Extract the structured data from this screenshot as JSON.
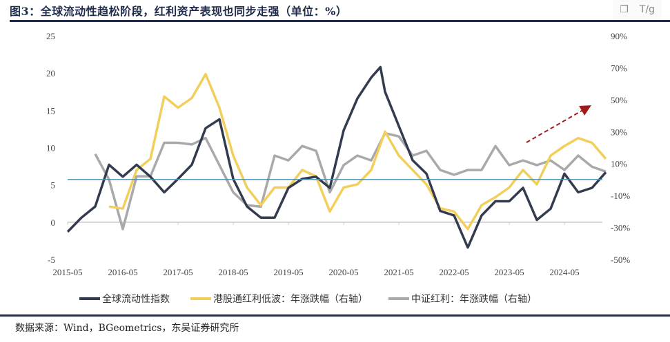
{
  "title": "图3：全球流动性趋松阶段，红利资产表现也同步走强（单位：%）",
  "toolbar": {
    "icons": [
      "copy-icon",
      "translate-icon"
    ],
    "translate_label": "T/g"
  },
  "source": "数据来源：Wind，BGeometrics，东吴证券研究所",
  "chart_data": {
    "type": "line",
    "title": "",
    "xlabel": "",
    "ylabel_left": "",
    "ylabel_right": "",
    "x_ticks": [
      "2015-05",
      "2016-05",
      "2017-05",
      "2018-05",
      "2019-05",
      "2020-05",
      "2021-05",
      "2022-05",
      "2023-05",
      "2024-05"
    ],
    "left_axis": {
      "ylim": [
        -5,
        25
      ],
      "ticks": [
        "25",
        "20",
        "15",
        "10",
        "5",
        "0",
        "-5"
      ]
    },
    "right_axis": {
      "ylim": [
        -50,
        90
      ],
      "ticks": [
        "90%",
        "70%",
        "50%",
        "30%",
        "10%",
        "-10%",
        "-30%",
        "-50%"
      ]
    },
    "grid": false,
    "legend_position": "bottom",
    "reference_line": {
      "axis": "right",
      "value": 0,
      "color": "#4a8fb0"
    },
    "annotation_arrow": {
      "color": "#a01c1c",
      "style": "dashed",
      "direction": "up-right",
      "from": "2023-11",
      "to": "2024-11"
    },
    "series": [
      {
        "name": "全球流动性指数",
        "axis": "left",
        "color": "#333c4e",
        "x": [
          "2015-05",
          "2015-08",
          "2015-11",
          "2016-02",
          "2016-05",
          "2016-08",
          "2016-11",
          "2017-02",
          "2017-05",
          "2017-08",
          "2017-11",
          "2018-02",
          "2018-05",
          "2018-08",
          "2018-11",
          "2019-02",
          "2019-05",
          "2019-08",
          "2019-11",
          "2020-02",
          "2020-05",
          "2020-08",
          "2020-11",
          "2021-01",
          "2021-02",
          "2021-05",
          "2021-08",
          "2021-11",
          "2022-02",
          "2022-05",
          "2022-08",
          "2022-11",
          "2023-02",
          "2023-05",
          "2023-08",
          "2023-11",
          "2024-02",
          "2024-05",
          "2024-08",
          "2024-11",
          "2025-02"
        ],
        "values": [
          -1.3,
          0.6,
          2.1,
          7.7,
          6.1,
          7.7,
          6.1,
          4.0,
          5.8,
          7.7,
          12.6,
          13.8,
          5.8,
          2.1,
          0.6,
          0.6,
          4.6,
          5.8,
          6.1,
          4.6,
          12.3,
          16.6,
          19.4,
          20.8,
          17.5,
          12.9,
          8.3,
          6.5,
          1.5,
          0.9,
          -3.4,
          0.9,
          2.8,
          2.8,
          4.6,
          0.3,
          1.8,
          6.5,
          4.0,
          4.6,
          6.7
        ]
      },
      {
        "name": "港股通红利低波：年涨跌幅（右轴）",
        "axis": "right",
        "color": "#f2cf5b",
        "x": [
          "2016-02",
          "2016-05",
          "2016-08",
          "2016-11",
          "2017-02",
          "2017-05",
          "2017-08",
          "2017-11",
          "2018-02",
          "2018-05",
          "2018-08",
          "2018-11",
          "2019-02",
          "2019-05",
          "2019-08",
          "2019-11",
          "2020-02",
          "2020-05",
          "2020-08",
          "2020-11",
          "2021-02",
          "2021-05",
          "2021-08",
          "2021-11",
          "2022-02",
          "2022-05",
          "2022-08",
          "2022-11",
          "2023-02",
          "2023-05",
          "2023-08",
          "2023-11",
          "2024-02",
          "2024-05",
          "2024-08",
          "2024-11",
          "2025-02"
        ],
        "values": [
          -16.9,
          -18.2,
          6,
          13,
          52,
          45,
          51,
          66,
          45,
          15,
          -5,
          -16,
          -5,
          -5,
          6,
          2,
          -20,
          -5,
          -3,
          6,
          30,
          15,
          6,
          -3,
          -18,
          -20,
          -31,
          -16,
          -11,
          -5,
          6,
          -3,
          15,
          21,
          26,
          23,
          13
        ]
      },
      {
        "name": "中证红利：年涨跌幅（右轴）",
        "axis": "right",
        "color": "#a9a9ab",
        "x": [
          "2015-11",
          "2016-02",
          "2016-05",
          "2016-08",
          "2016-11",
          "2017-02",
          "2017-05",
          "2017-08",
          "2017-11",
          "2018-02",
          "2018-05",
          "2018-08",
          "2018-11",
          "2019-02",
          "2019-05",
          "2019-08",
          "2019-11",
          "2020-02",
          "2020-05",
          "2020-08",
          "2020-11",
          "2021-02",
          "2021-05",
          "2021-08",
          "2021-11",
          "2022-02",
          "2022-05",
          "2022-08",
          "2022-11",
          "2023-02",
          "2023-05",
          "2023-08",
          "2023-11",
          "2024-02",
          "2024-05",
          "2024-08",
          "2024-11",
          "2025-02"
        ],
        "values": [
          16,
          0,
          -31,
          2,
          2,
          23,
          23,
          22,
          26,
          9,
          -8,
          -16,
          -17,
          15,
          12,
          21,
          18,
          -8,
          9,
          15,
          12,
          29,
          27,
          15,
          18,
          6,
          3,
          6,
          6,
          21,
          9,
          12,
          9,
          12,
          6,
          15,
          8,
          5
        ]
      }
    ]
  }
}
